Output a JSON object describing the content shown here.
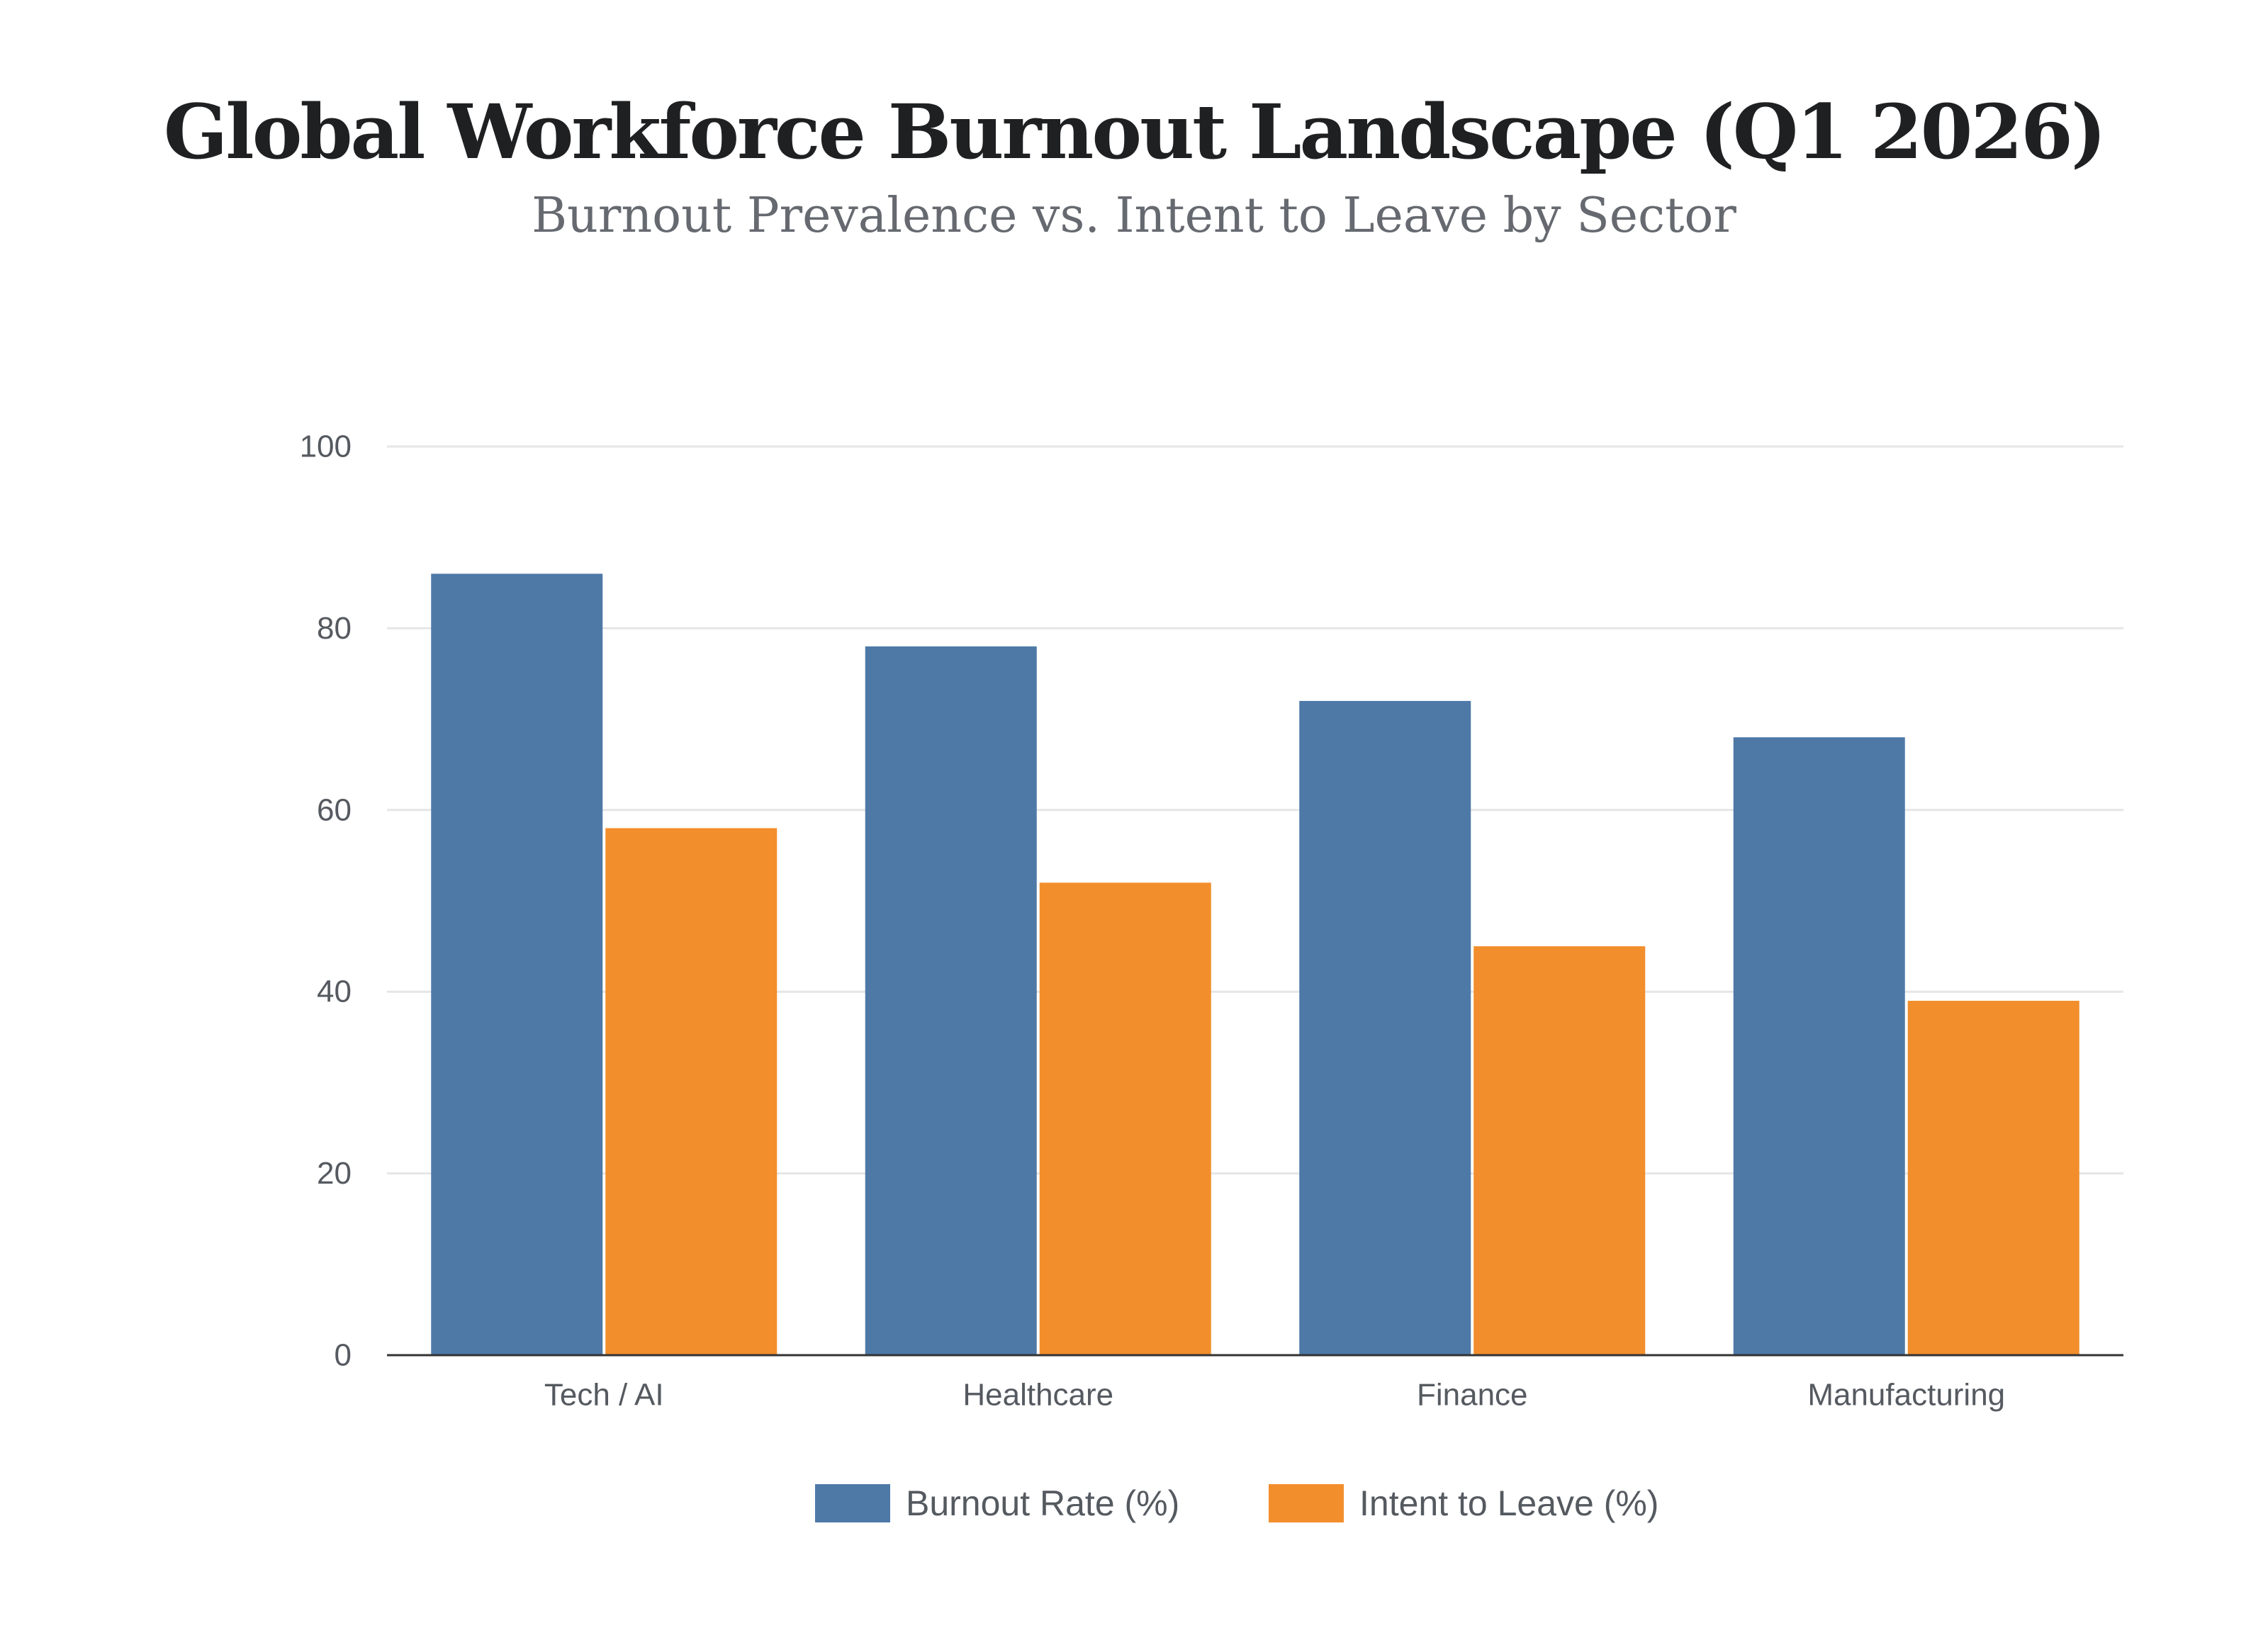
{
  "chart_data": {
    "type": "bar",
    "title": "Global Workforce Burnout Landscape (Q1 2026)",
    "subtitle": "Burnout Prevalence vs. Intent to Leave by Sector",
    "xlabel": "",
    "ylabel": "",
    "ylim": [
      0,
      100
    ],
    "yticks": [
      "0",
      "20",
      "40",
      "60",
      "80",
      "100"
    ],
    "grid": true,
    "legend_position": "bottom-center",
    "categories": [
      "Tech / AI",
      "Healthcare",
      "Finance",
      "Manufacturing"
    ],
    "series": [
      {
        "name": "Burnout Rate (%)",
        "values": [
          86,
          78,
          72,
          68
        ],
        "color": "#4e79a7"
      },
      {
        "name": "Intent to Leave (%)",
        "values": [
          58,
          52,
          45,
          39
        ],
        "color": "#f28e2b"
      }
    ]
  }
}
